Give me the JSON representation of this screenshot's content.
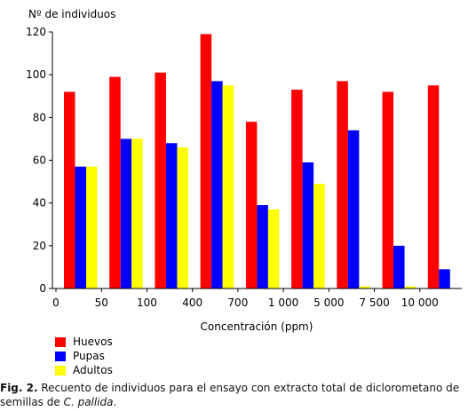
{
  "chart_data": {
    "type": "bar",
    "ylabel": "Nº de individuos",
    "xlabel": "Concentración (ppm)",
    "categories": [
      "0",
      "50",
      "100",
      "400",
      "700",
      "1 000",
      "5 000",
      "7 500",
      "10 000"
    ],
    "ylim": [
      0,
      120
    ],
    "yticks": [
      "0",
      "20",
      "40",
      "60",
      "80",
      "100",
      "120"
    ],
    "grid": false,
    "legend_position": "bottom-left",
    "series": [
      {
        "name": "Huevos",
        "color": "#ff0000",
        "values": [
          92,
          99,
          101,
          119,
          78,
          93,
          97,
          92,
          95
        ]
      },
      {
        "name": "Pupas",
        "color": "#0000ff",
        "values": [
          57,
          70,
          68,
          97,
          39,
          59,
          74,
          20,
          9
        ]
      },
      {
        "name": "Adultos",
        "color": "#ffff00",
        "values": [
          57,
          70,
          66,
          95,
          37,
          49,
          1,
          1,
          0
        ]
      }
    ]
  },
  "caption": {
    "label": "Fig. 2.",
    "text_before": " Recuento de individuos para el ensayo con extracto total de diclorometano de semillas de ",
    "species": "C. pallida",
    "text_after": "."
  }
}
